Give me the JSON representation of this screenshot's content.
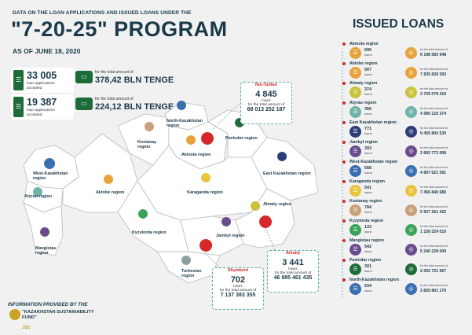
{
  "header": {
    "subtitle": "DATA ON THE LOAN APPLICATIONS AND ISSUED LOANS UNDER THE",
    "title": "\"7-20-25\"  PROGRAM",
    "date": "AS OF JUNE 18, 2020"
  },
  "stats": {
    "applications": {
      "number": "33 005",
      "label": "loan applications accepted",
      "amount_label": "for the total amount of",
      "amount": "378,42 BLN TENGE"
    },
    "issued": {
      "number": "19 387",
      "label": "loan applications accepted",
      "amount_label": "for the total amount of",
      "amount": "224,12 BLN TENGE"
    }
  },
  "map": {
    "regions": [
      "North-Kazakhstan region",
      "Kostanay region",
      "Akmola region",
      "Pavlodar region",
      "West-Kazakhstan region",
      "Atyrau region",
      "Aktobe region",
      "East Kazakhstan region",
      "Karaganda region",
      "Almaty region",
      "Kyzylorda region",
      "Jambyl region",
      "Mangistau region",
      "Turkestan region"
    ],
    "callouts": [
      {
        "tag": "Nur-Sultan",
        "number": "4 845",
        "unit": "loans",
        "amount_label": "for the total amount of",
        "amount": "68 013 252 187"
      },
      {
        "tag": "Almaty",
        "number": "3 441",
        "unit": "loans",
        "amount_label": "for the total amount of",
        "amount": "46 985 461 435"
      },
      {
        "tag": "Shymkent",
        "number": "702",
        "unit": "loans",
        "amount_label": "for the total amount of",
        "amount": "7 137 383 355"
      }
    ]
  },
  "issued_loans": {
    "title": "ISSUED LOANS",
    "unit": "loans",
    "amount_label": "for the total amount of",
    "rows": [
      {
        "region": "Akmola region",
        "loans": "695",
        "amount": "6 198 583 948",
        "color": "#e8a23c"
      },
      {
        "region": "Aktobe region",
        "loans": "907",
        "amount": "7 835 839 393",
        "color": "#e8a23c"
      },
      {
        "region": "Almaty region",
        "loans": "374",
        "amount": "3 725 078 419",
        "color": "#c9c23c"
      },
      {
        "region": "Atyrau region",
        "loans": "356",
        "amount": "4 990 125 374",
        "color": "#6fb3a8"
      },
      {
        "region": "East Kazakhstan region",
        "loans": "771",
        "amount": "9 455 800 530",
        "color": "#2c3e78"
      },
      {
        "region": "Jambyl region",
        "loans": "393",
        "amount": "2 683 772 008",
        "color": "#6a4c8c"
      },
      {
        "region": "West-Kazakhstan region",
        "loans": "568",
        "amount": "4 897 621 591",
        "color": "#3a6fb0"
      },
      {
        "region": "Karaganda region",
        "loans": "541",
        "amount": "7 456 840 680",
        "color": "#e8c53c"
      },
      {
        "region": "Kostanay region",
        "loans": "784",
        "amount": "5 927 261 422",
        "color": "#c9a07a"
      },
      {
        "region": "Kyzylorda region",
        "loans": "133",
        "amount": "1 158 324 010",
        "color": "#3aa35a"
      },
      {
        "region": "Mangistau region",
        "loans": "542",
        "amount": "5 240 228 009",
        "color": "#6a4c8c"
      },
      {
        "region": "Pavlodar region",
        "loans": "301",
        "amount": "2 092 721 567",
        "color": "#1e6b3a"
      },
      {
        "region": "North-Kazakhstan region",
        "loans": "534",
        "amount": "3 825 801 170",
        "color": "#3a6fb0"
      }
    ]
  },
  "footer": {
    "info": "INFORMATION PROVIDED BY THE",
    "org": "\"KAZAKHSTAN SUSTAINABILITY FUND\"",
    "suffix": "JSC"
  },
  "colors": {
    "brand_green": "#1e6b3a",
    "accent_red": "#d62828",
    "text_dark": "#1a3a4a",
    "map_fill": "#ffffff",
    "map_stroke": "#bbbbbb"
  },
  "icons": {
    "document": "document-icon",
    "money": "money-icon",
    "pin": "map-pin-icon",
    "coins": "coins-icon"
  }
}
